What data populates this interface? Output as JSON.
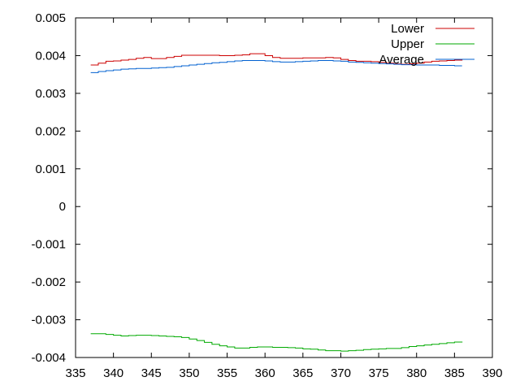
{
  "chart_data": {
    "type": "line",
    "title": "",
    "xlabel": "",
    "ylabel": "",
    "xlim": [
      335,
      390
    ],
    "ylim": [
      -0.004,
      0.005
    ],
    "x_ticks": [
      "335",
      "340",
      "345",
      "350",
      "355",
      "360",
      "365",
      "370",
      "375",
      "380",
      "385",
      "390"
    ],
    "y_ticks": [
      "0.005",
      "0.004",
      "0.003",
      "0.002",
      "0.001",
      "0",
      "-0.001",
      "-0.002",
      "-0.003",
      "-0.004"
    ],
    "grid": false,
    "legend_position": "top-right",
    "series": [
      {
        "name": "Lower",
        "color": "#cc0000",
        "x": [
          337,
          338,
          339,
          340,
          341,
          342,
          343,
          344,
          345,
          346,
          347,
          348,
          349,
          350,
          351,
          352,
          353,
          354,
          355,
          356,
          357,
          358,
          359,
          360,
          361,
          362,
          363,
          364,
          365,
          366,
          367,
          368,
          369,
          370,
          371,
          372,
          373,
          374,
          375,
          376,
          377,
          378,
          379,
          380,
          381,
          382,
          383,
          384,
          385,
          386
        ],
        "y": [
          0.00375,
          0.0038,
          0.00385,
          0.00386,
          0.00388,
          0.0039,
          0.00393,
          0.00395,
          0.00392,
          0.00392,
          0.00395,
          0.00398,
          0.00401,
          0.00401,
          0.00401,
          0.00401,
          0.00401,
          0.004,
          0.004,
          0.00401,
          0.00402,
          0.00405,
          0.00405,
          0.004,
          0.00395,
          0.00393,
          0.00393,
          0.00393,
          0.00394,
          0.00394,
          0.00394,
          0.00395,
          0.00394,
          0.0039,
          0.00387,
          0.00385,
          0.00385,
          0.00384,
          0.00382,
          0.0038,
          0.00378,
          0.00377,
          0.00378,
          0.0038,
          0.00383,
          0.00385,
          0.00386,
          0.00387,
          0.00388,
          0.0039
        ]
      },
      {
        "name": "Upper",
        "color": "#00aa00",
        "x": [
          337,
          338,
          339,
          340,
          341,
          342,
          343,
          344,
          345,
          346,
          347,
          348,
          349,
          350,
          351,
          352,
          353,
          354,
          355,
          356,
          357,
          358,
          359,
          360,
          361,
          362,
          363,
          364,
          365,
          366,
          367,
          368,
          369,
          370,
          371,
          372,
          373,
          374,
          375,
          376,
          377,
          378,
          379,
          380,
          381,
          382,
          383,
          384,
          385,
          386
        ],
        "y": [
          -0.00337,
          -0.00337,
          -0.00339,
          -0.00341,
          -0.00343,
          -0.00342,
          -0.00341,
          -0.00341,
          -0.00342,
          -0.00343,
          -0.00344,
          -0.00345,
          -0.00347,
          -0.00351,
          -0.00355,
          -0.0036,
          -0.00365,
          -0.00369,
          -0.00372,
          -0.00375,
          -0.00375,
          -0.00373,
          -0.00372,
          -0.00372,
          -0.00373,
          -0.00373,
          -0.00374,
          -0.00375,
          -0.00377,
          -0.00378,
          -0.0038,
          -0.00382,
          -0.00382,
          -0.00383,
          -0.00382,
          -0.00381,
          -0.00379,
          -0.00378,
          -0.00377,
          -0.00376,
          -0.00376,
          -0.00374,
          -0.00371,
          -0.00369,
          -0.00367,
          -0.00365,
          -0.00363,
          -0.00361,
          -0.00359,
          -0.00358
        ]
      },
      {
        "name": "Average",
        "color": "#0060d0",
        "x": [
          337,
          338,
          339,
          340,
          341,
          342,
          343,
          344,
          345,
          346,
          347,
          348,
          349,
          350,
          351,
          352,
          353,
          354,
          355,
          356,
          357,
          358,
          359,
          360,
          361,
          362,
          363,
          364,
          365,
          366,
          367,
          368,
          369,
          370,
          371,
          372,
          373,
          374,
          375,
          376,
          377,
          378,
          379,
          380,
          381,
          382,
          383,
          384,
          385,
          386
        ],
        "y": [
          0.00355,
          0.00358,
          0.0036,
          0.00362,
          0.00364,
          0.00365,
          0.00366,
          0.00366,
          0.00367,
          0.00368,
          0.00369,
          0.00371,
          0.00373,
          0.00375,
          0.00377,
          0.00379,
          0.00381,
          0.00382,
          0.00384,
          0.00386,
          0.00387,
          0.00387,
          0.00387,
          0.00386,
          0.00384,
          0.00383,
          0.00383,
          0.00384,
          0.00385,
          0.00386,
          0.00387,
          0.00387,
          0.00386,
          0.00385,
          0.00383,
          0.00382,
          0.00381,
          0.0038,
          0.00379,
          0.00378,
          0.00377,
          0.00376,
          0.00376,
          0.00375,
          0.00375,
          0.00375,
          0.00374,
          0.00374,
          0.00373,
          0.00373
        ]
      }
    ]
  }
}
